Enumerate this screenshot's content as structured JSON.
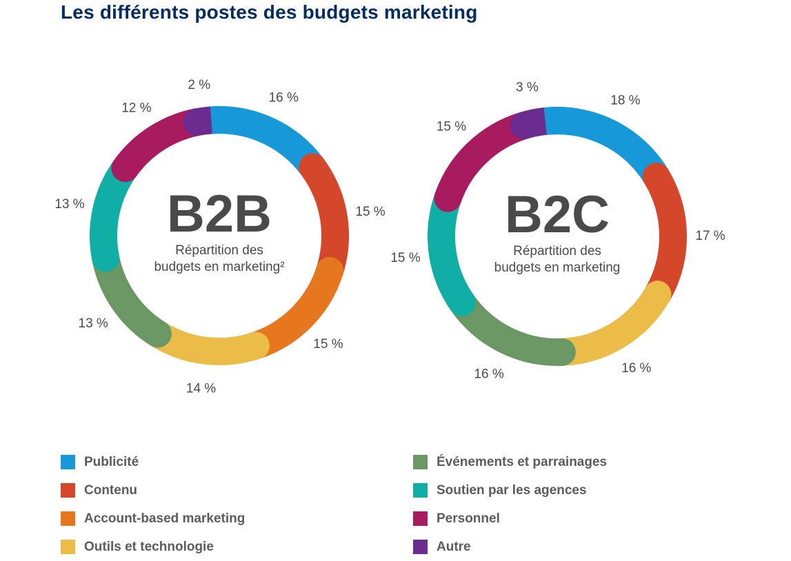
{
  "title": "Les différents postes des budgets marketing",
  "colors": {
    "Publicité": "#1798d8",
    "Contenu": "#d4472a",
    "Account-based marketing": "#e6771f",
    "Outils et technologie": "#ebbc48",
    "Événements et parrainages": "#6a9763",
    "Soutien par les agences": "#10aea5",
    "Personnel": "#a81c5f",
    "Autre": "#6b2b8f"
  },
  "legend": {
    "left": [
      "Publicité",
      "Contenu",
      "Account-based marketing",
      "Outils et technologie"
    ],
    "right": [
      "Événements et parrainages",
      "Soutien par les agences",
      "Personnel",
      "Autre"
    ]
  },
  "chart_data": [
    {
      "type": "pie",
      "center_title": "B2B",
      "center_subtitle_lines": [
        "Répartition des",
        "budgets en marketing²"
      ],
      "slices": [
        {
          "category": "Publicité",
          "value": 16,
          "label": "16 %"
        },
        {
          "category": "Contenu",
          "value": 15,
          "label": "15 %"
        },
        {
          "category": "Account-based marketing",
          "value": 15,
          "label": "15 %"
        },
        {
          "category": "Outils et technologie",
          "value": 14,
          "label": "14 %"
        },
        {
          "category": "Événements et parrainages",
          "value": 13,
          "label": "13 %"
        },
        {
          "category": "Soutien par les agences",
          "value": 13,
          "label": "13 %"
        },
        {
          "category": "Personnel",
          "value": 12,
          "label": "12 %"
        },
        {
          "category": "Autre",
          "value": 2,
          "label": "2 %"
        }
      ]
    },
    {
      "type": "pie",
      "center_title": "B2C",
      "center_subtitle_lines": [
        "Répartition des",
        "budgets en marketing"
      ],
      "slices": [
        {
          "category": "Publicité",
          "value": 18,
          "label": "18 %"
        },
        {
          "category": "Contenu",
          "value": 17,
          "label": "17 %"
        },
        {
          "category": "Outils et technologie",
          "value": 16,
          "label": "16 %"
        },
        {
          "category": "Événements et parrainages",
          "value": 16,
          "label": "16 %"
        },
        {
          "category": "Soutien par les agences",
          "value": 15,
          "label": "15 %"
        },
        {
          "category": "Personnel",
          "value": 15,
          "label": "15 %"
        },
        {
          "category": "Autre",
          "value": 3,
          "label": "3 %"
        }
      ]
    }
  ]
}
